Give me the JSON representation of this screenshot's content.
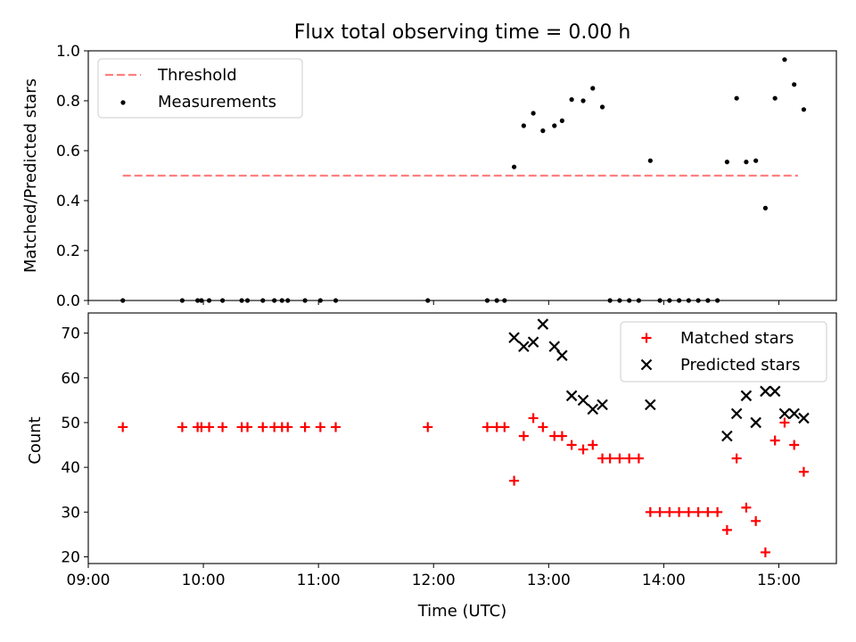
{
  "figure": {
    "title": "Flux total observing time = 0.00 h"
  },
  "chart_data": [
    {
      "type": "scatter",
      "panel": "top",
      "title": "Flux total observing time = 0.00 h",
      "xlabel": "",
      "ylabel": "Matched/Predicted stars",
      "ylim": [
        0.0,
        1.0
      ],
      "yticks": [
        "0.0",
        "0.2",
        "0.4",
        "0.6",
        "0.8",
        "1.0"
      ],
      "legend_position": "top-left",
      "threshold": {
        "name": "Threshold",
        "value": 0.5,
        "x_start": "09:18",
        "x_end": "15:10",
        "color": "#ff7f7f",
        "style": "dashed"
      },
      "series": [
        {
          "name": "Measurements",
          "color": "#000000",
          "marker": "dot",
          "points": [
            {
              "x": "09:18",
              "y": 0
            },
            {
              "x": "09:49",
              "y": 0
            },
            {
              "x": "09:57",
              "y": 0
            },
            {
              "x": "09:59",
              "y": 0
            },
            {
              "x": "10:03",
              "y": 0
            },
            {
              "x": "10:10",
              "y": 0
            },
            {
              "x": "10:20",
              "y": 0
            },
            {
              "x": "10:23",
              "y": 0
            },
            {
              "x": "10:31",
              "y": 0
            },
            {
              "x": "10:37",
              "y": 0
            },
            {
              "x": "10:41",
              "y": 0
            },
            {
              "x": "10:44",
              "y": 0
            },
            {
              "x": "10:53",
              "y": 0
            },
            {
              "x": "11:01",
              "y": 0
            },
            {
              "x": "11:09",
              "y": 0
            },
            {
              "x": "11:57",
              "y": 0
            },
            {
              "x": "12:28",
              "y": 0
            },
            {
              "x": "12:33",
              "y": 0
            },
            {
              "x": "12:37",
              "y": 0
            },
            {
              "x": "12:42",
              "y": 0.535
            },
            {
              "x": "12:47",
              "y": 0.7
            },
            {
              "x": "12:52",
              "y": 0.75
            },
            {
              "x": "12:57",
              "y": 0.68
            },
            {
              "x": "13:03",
              "y": 0.7
            },
            {
              "x": "13:07",
              "y": 0.72
            },
            {
              "x": "13:12",
              "y": 0.805
            },
            {
              "x": "13:18",
              "y": 0.8
            },
            {
              "x": "13:23",
              "y": 0.85
            },
            {
              "x": "13:28",
              "y": 0.775
            },
            {
              "x": "13:32",
              "y": 0
            },
            {
              "x": "13:37",
              "y": 0
            },
            {
              "x": "13:42",
              "y": 0
            },
            {
              "x": "13:47",
              "y": 0
            },
            {
              "x": "13:53",
              "y": 0.56
            },
            {
              "x": "13:58",
              "y": 0
            },
            {
              "x": "14:03",
              "y": 0
            },
            {
              "x": "14:08",
              "y": 0
            },
            {
              "x": "14:13",
              "y": 0
            },
            {
              "x": "14:18",
              "y": 0
            },
            {
              "x": "14:23",
              "y": 0
            },
            {
              "x": "14:28",
              "y": 0
            },
            {
              "x": "14:33",
              "y": 0.555
            },
            {
              "x": "14:38",
              "y": 0.81
            },
            {
              "x": "14:43",
              "y": 0.555
            },
            {
              "x": "14:48",
              "y": 0.56
            },
            {
              "x": "14:53",
              "y": 0.37
            },
            {
              "x": "14:58",
              "y": 0.81
            },
            {
              "x": "15:03",
              "y": 0.965
            },
            {
              "x": "15:08",
              "y": 0.865
            },
            {
              "x": "15:13",
              "y": 0.765
            }
          ]
        }
      ]
    },
    {
      "type": "scatter",
      "panel": "bottom",
      "title": "",
      "xlabel": "Time (UTC)",
      "ylabel": "Count",
      "ylim": [
        18.5,
        74.5
      ],
      "xlim": [
        "09:00",
        "15:30"
      ],
      "yticks": [
        "20",
        "30",
        "40",
        "50",
        "60",
        "70"
      ],
      "xticks": [
        "09:00",
        "10:00",
        "11:00",
        "12:00",
        "13:00",
        "14:00",
        "15:00"
      ],
      "legend_position": "top-right",
      "series": [
        {
          "name": "Matched stars",
          "color": "#ff0000",
          "marker": "plus",
          "points": [
            {
              "x": "09:18",
              "y": 49
            },
            {
              "x": "09:49",
              "y": 49
            },
            {
              "x": "09:57",
              "y": 49
            },
            {
              "x": "09:59",
              "y": 49
            },
            {
              "x": "10:03",
              "y": 49
            },
            {
              "x": "10:10",
              "y": 49
            },
            {
              "x": "10:20",
              "y": 49
            },
            {
              "x": "10:23",
              "y": 49
            },
            {
              "x": "10:31",
              "y": 49
            },
            {
              "x": "10:37",
              "y": 49
            },
            {
              "x": "10:41",
              "y": 49
            },
            {
              "x": "10:44",
              "y": 49
            },
            {
              "x": "10:53",
              "y": 49
            },
            {
              "x": "11:01",
              "y": 49
            },
            {
              "x": "11:09",
              "y": 49
            },
            {
              "x": "11:57",
              "y": 49
            },
            {
              "x": "12:28",
              "y": 49
            },
            {
              "x": "12:33",
              "y": 49
            },
            {
              "x": "12:37",
              "y": 49
            },
            {
              "x": "12:42",
              "y": 37
            },
            {
              "x": "12:47",
              "y": 47
            },
            {
              "x": "12:52",
              "y": 51
            },
            {
              "x": "12:57",
              "y": 49
            },
            {
              "x": "13:03",
              "y": 47
            },
            {
              "x": "13:07",
              "y": 47
            },
            {
              "x": "13:12",
              "y": 45
            },
            {
              "x": "13:18",
              "y": 44
            },
            {
              "x": "13:23",
              "y": 45
            },
            {
              "x": "13:28",
              "y": 42
            },
            {
              "x": "13:32",
              "y": 42
            },
            {
              "x": "13:37",
              "y": 42
            },
            {
              "x": "13:42",
              "y": 42
            },
            {
              "x": "13:47",
              "y": 42
            },
            {
              "x": "13:53",
              "y": 30
            },
            {
              "x": "13:58",
              "y": 30
            },
            {
              "x": "14:03",
              "y": 30
            },
            {
              "x": "14:08",
              "y": 30
            },
            {
              "x": "14:13",
              "y": 30
            },
            {
              "x": "14:18",
              "y": 30
            },
            {
              "x": "14:23",
              "y": 30
            },
            {
              "x": "14:28",
              "y": 30
            },
            {
              "x": "14:33",
              "y": 26
            },
            {
              "x": "14:38",
              "y": 42
            },
            {
              "x": "14:43",
              "y": 31
            },
            {
              "x": "14:48",
              "y": 28
            },
            {
              "x": "14:53",
              "y": 21
            },
            {
              "x": "14:58",
              "y": 46
            },
            {
              "x": "15:03",
              "y": 50
            },
            {
              "x": "15:08",
              "y": 45
            },
            {
              "x": "15:13",
              "y": 39
            }
          ]
        },
        {
          "name": "Predicted stars",
          "color": "#000000",
          "marker": "x",
          "points": [
            {
              "x": "12:42",
              "y": 69
            },
            {
              "x": "12:47",
              "y": 67
            },
            {
              "x": "12:52",
              "y": 68
            },
            {
              "x": "12:57",
              "y": 72
            },
            {
              "x": "13:03",
              "y": 67
            },
            {
              "x": "13:07",
              "y": 65
            },
            {
              "x": "13:12",
              "y": 56
            },
            {
              "x": "13:18",
              "y": 55
            },
            {
              "x": "13:23",
              "y": 53
            },
            {
              "x": "13:28",
              "y": 54
            },
            {
              "x": "13:53",
              "y": 54
            },
            {
              "x": "14:33",
              "y": 47
            },
            {
              "x": "14:38",
              "y": 52
            },
            {
              "x": "14:43",
              "y": 56
            },
            {
              "x": "14:48",
              "y": 50
            },
            {
              "x": "14:53",
              "y": 57
            },
            {
              "x": "14:58",
              "y": 57
            },
            {
              "x": "15:03",
              "y": 52
            },
            {
              "x": "15:08",
              "y": 52
            },
            {
              "x": "15:13",
              "y": 51
            }
          ]
        }
      ]
    }
  ]
}
